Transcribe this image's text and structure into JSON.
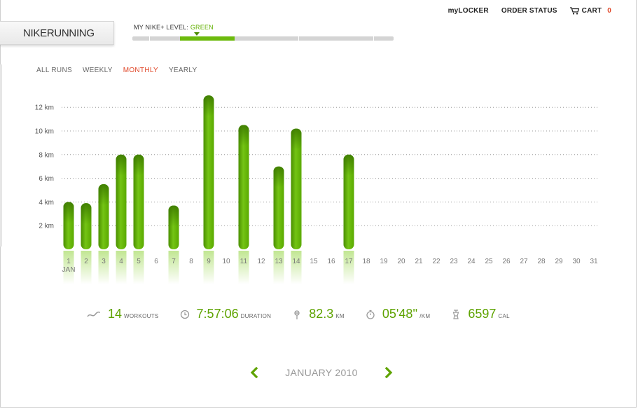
{
  "topnav": {
    "mylocker": "myLOCKER",
    "order_status": "ORDER STATUS",
    "cart": "CART",
    "cart_count": "0"
  },
  "brand": {
    "nike": "NIKE",
    "running": "RUNNING"
  },
  "level": {
    "label": "MY NIKE+ LEVEL:",
    "value": "GREEN",
    "accent": "#62b000"
  },
  "tabs": {
    "all": "ALL RUNS",
    "weekly": "WEEKLY",
    "monthly": "MONTHLY",
    "yearly": "YEARLY"
  },
  "chart_data": {
    "type": "bar",
    "categories": [
      "1",
      "2",
      "3",
      "4",
      "5",
      "6",
      "7",
      "8",
      "9",
      "10",
      "11",
      "12",
      "13",
      "14",
      "15",
      "16",
      "17",
      "18",
      "19",
      "20",
      "21",
      "22",
      "23",
      "24",
      "25",
      "26",
      "27",
      "28",
      "29",
      "30",
      "31"
    ],
    "values": [
      4.0,
      3.9,
      5.5,
      8.0,
      8.0,
      0,
      3.7,
      0,
      13.0,
      0,
      10.5,
      0,
      7.0,
      10.2,
      0,
      0,
      8.0,
      0,
      0,
      0,
      0,
      0,
      0,
      0,
      0,
      0,
      0,
      0,
      0,
      0,
      0
    ],
    "y_ticks": [
      "2 km",
      "4 km",
      "6 km",
      "8 km",
      "10 km",
      "12 km"
    ],
    "ylim": [
      0,
      13.5
    ],
    "x_sublabel": "JAN",
    "grid": true,
    "bar_color": "#5ea300"
  },
  "stats": {
    "workouts": {
      "value": "14",
      "unit": "WORKOUTS"
    },
    "duration": {
      "value": "7:57:06",
      "unit": "DURATION"
    },
    "distance": {
      "value": "82.3",
      "unit": "KM"
    },
    "pace": {
      "value": "05'48''",
      "unit": "/KM"
    },
    "calories": {
      "value": "6597",
      "unit": "CAL"
    }
  },
  "month_nav": {
    "label": "JANUARY 2010"
  }
}
